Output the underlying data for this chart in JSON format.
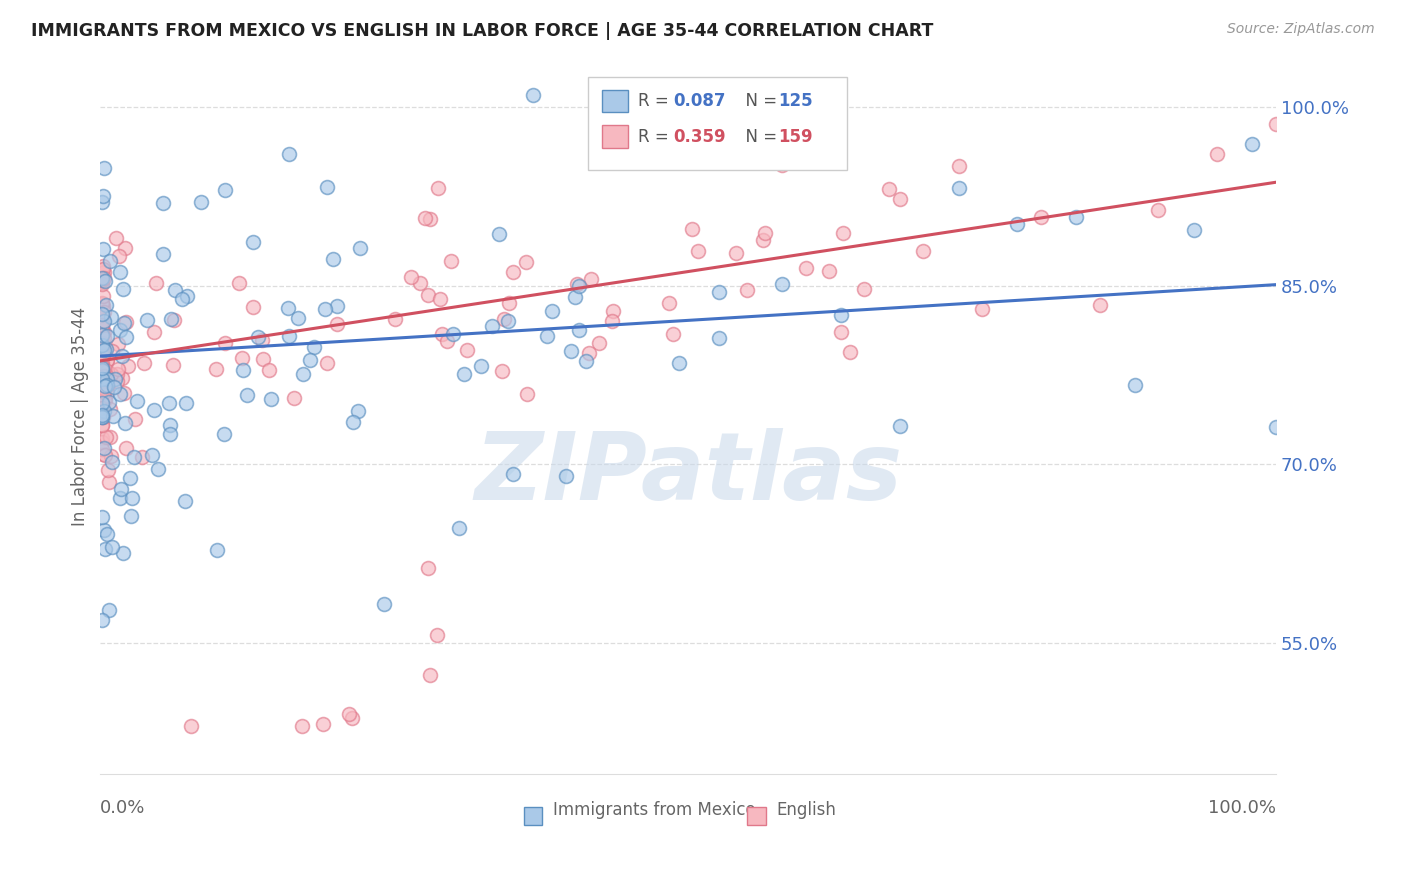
{
  "title": "IMMIGRANTS FROM MEXICO VS ENGLISH IN LABOR FORCE | AGE 35-44 CORRELATION CHART",
  "source": "Source: ZipAtlas.com",
  "ylabel": "In Labor Force | Age 35-44",
  "ytick_labels": [
    "55.0%",
    "70.0%",
    "85.0%",
    "100.0%"
  ],
  "ytick_values": [
    0.55,
    0.7,
    0.85,
    1.0
  ],
  "xlim": [
    0.0,
    1.0
  ],
  "ylim": [
    0.44,
    1.04
  ],
  "legend_label_blue": "Immigrants from Mexico",
  "legend_label_pink": "English",
  "blue_fill_color": "#aac9e8",
  "pink_fill_color": "#f7b8c0",
  "blue_edge_color": "#5a8fc0",
  "pink_edge_color": "#e0788a",
  "blue_line_color": "#4472c4",
  "pink_line_color": "#d05060",
  "blue_r": 0.087,
  "blue_n": 125,
  "pink_r": 0.359,
  "pink_n": 159,
  "blue_line_start_y": 0.791,
  "blue_line_end_y": 0.851,
  "pink_line_start_y": 0.787,
  "pink_line_end_y": 0.937,
  "watermark_text": "ZIPatlas",
  "watermark_color": "#c8d8ea",
  "grid_color": "#dddddd",
  "bg_color": "#ffffff",
  "title_color": "#222222",
  "source_color": "#999999",
  "axis_label_color": "#666666",
  "ytick_color": "#4472c4",
  "marker_size": 100,
  "marker_alpha": 0.65,
  "marker_linewidth": 1.2
}
